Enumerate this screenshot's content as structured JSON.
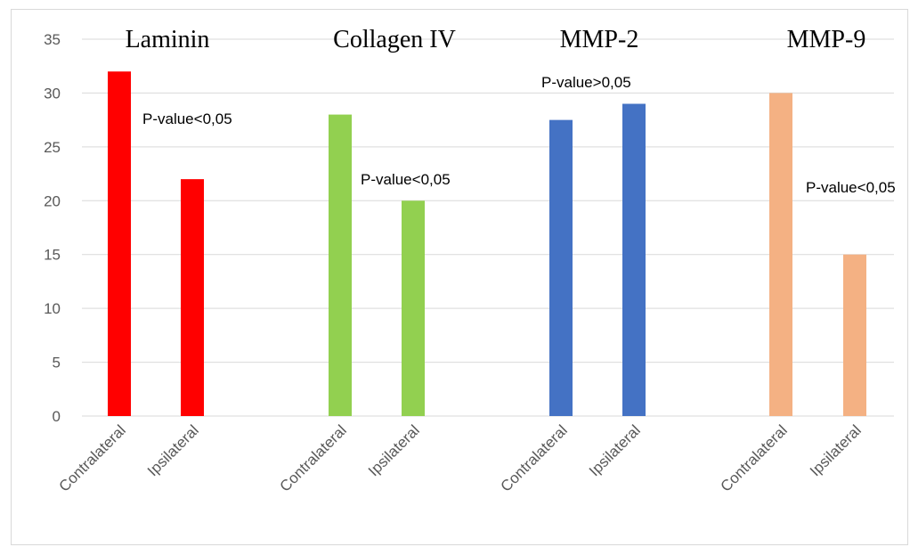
{
  "chart_data": {
    "type": "bar",
    "groups": [
      "Laminin",
      "Collagen IV",
      "MMP-2",
      "MMP-9"
    ],
    "categories": [
      "Contralateral",
      "Ipsilateral",
      "Contralateral",
      "Ipsilateral",
      "Contralateral",
      "Ipsilateral",
      "Contralateral",
      "Ipsilateral"
    ],
    "values": [
      32,
      22,
      28,
      20,
      27.5,
      29,
      30,
      15
    ],
    "bar_colors": [
      "#ff0000",
      "#ff0000",
      "#92d050",
      "#92d050",
      "#4472c4",
      "#4472c4",
      "#f4b183",
      "#f4b183"
    ],
    "annotations": [
      "P-value<0,05",
      "P-value<0,05",
      "P-value>0,05",
      "P-value<0,05"
    ],
    "ylim": [
      0,
      35
    ],
    "yticks": [
      0,
      5,
      10,
      15,
      20,
      25,
      30,
      35
    ],
    "grid": true,
    "legend": "none",
    "title": "",
    "xlabel": "",
    "ylabel": ""
  }
}
